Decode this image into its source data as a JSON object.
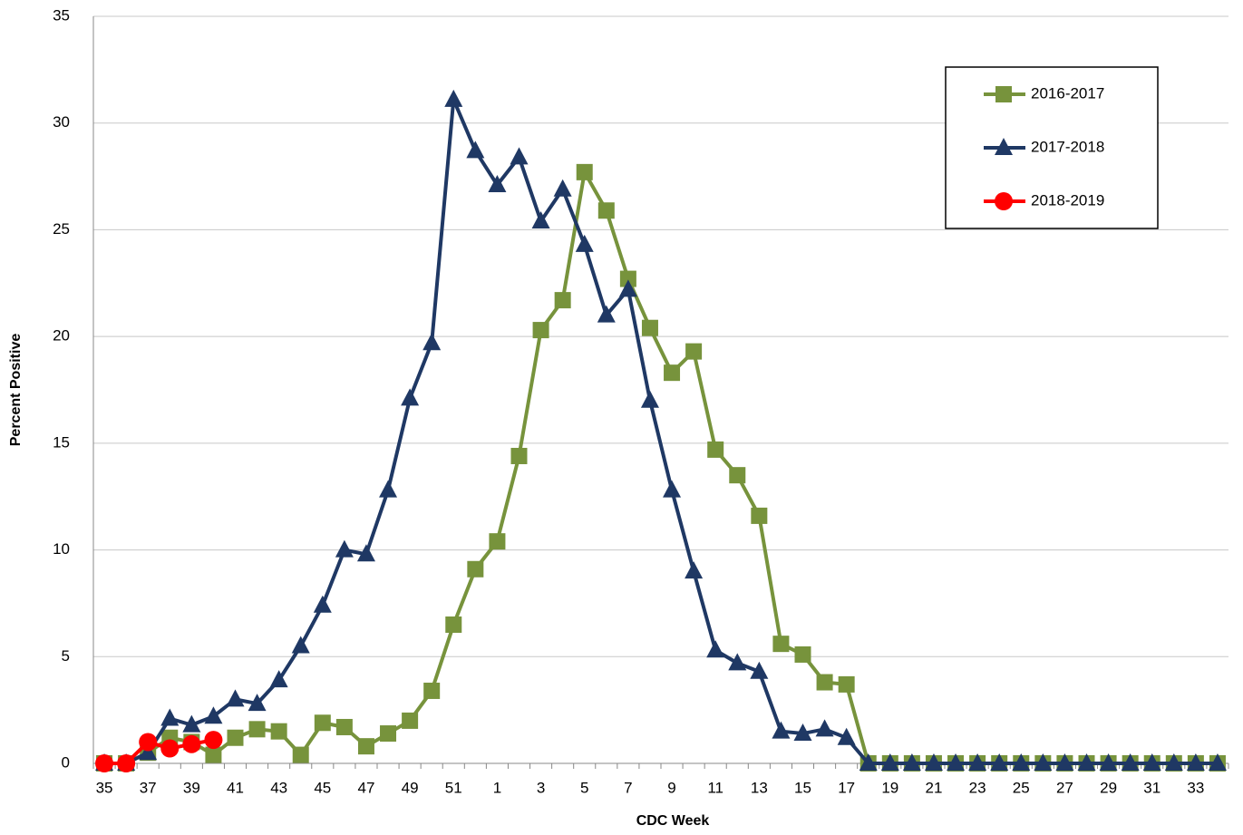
{
  "chart_data": {
    "type": "line",
    "xlabel": "CDC Week",
    "ylabel": "Percent Positive",
    "categories": [
      "35",
      null,
      "37",
      null,
      "39",
      null,
      "41",
      null,
      "43",
      null,
      "45",
      null,
      "47",
      null,
      "49",
      null,
      "51",
      null,
      "1",
      null,
      "3",
      null,
      "5",
      null,
      "7",
      null,
      "9",
      null,
      "11",
      null,
      "13",
      null,
      "15",
      null,
      "17",
      null,
      "19",
      null,
      "21",
      null,
      "23",
      null,
      "25",
      null,
      "27",
      null,
      "29",
      null,
      "31",
      null,
      "33",
      null
    ],
    "series": [
      {
        "name": "2016-2017",
        "color": "#77933c",
        "marker": "square",
        "values": [
          0,
          0,
          0.5,
          1.2,
          1.0,
          0.4,
          1.2,
          1.6,
          1.5,
          0.4,
          1.9,
          1.7,
          0.8,
          1.4,
          2.0,
          3.4,
          6.5,
          9.1,
          10.4,
          14.4,
          20.3,
          21.7,
          27.7,
          25.9,
          22.7,
          20.4,
          18.3,
          19.3,
          14.7,
          13.5,
          11.6,
          5.6,
          5.1,
          3.8,
          3.7,
          0,
          0,
          0,
          0,
          0,
          0,
          0,
          0,
          0,
          0,
          0,
          0,
          0,
          0,
          0,
          0,
          0
        ]
      },
      {
        "name": "2017-2018",
        "color": "#1f3864",
        "marker": "triangle",
        "values": [
          0,
          0,
          0.5,
          2.1,
          1.8,
          2.2,
          3.0,
          2.8,
          3.9,
          5.5,
          7.4,
          10.0,
          9.8,
          12.8,
          17.1,
          19.7,
          31.1,
          28.7,
          27.1,
          28.4,
          25.4,
          26.9,
          24.3,
          21.0,
          22.2,
          17.0,
          12.8,
          9.0,
          5.3,
          4.7,
          4.3,
          1.5,
          1.4,
          1.6,
          1.2,
          0,
          0,
          0,
          0,
          0,
          0,
          0,
          0,
          0,
          0,
          0,
          0,
          0,
          0,
          0,
          0,
          0
        ]
      },
      {
        "name": "2018-2019",
        "color": "#ff0000",
        "marker": "circle",
        "values": [
          0,
          0,
          1.0,
          0.7,
          0.9,
          1.1,
          null,
          null,
          null,
          null,
          null,
          null,
          null,
          null,
          null,
          null,
          null,
          null,
          null,
          null,
          null,
          null,
          null,
          null,
          null,
          null,
          null,
          null,
          null,
          null,
          null,
          null,
          null,
          null,
          null,
          null,
          null,
          null,
          null,
          null,
          null,
          null,
          null,
          null,
          null,
          null,
          null,
          null,
          null,
          null,
          null,
          null
        ]
      }
    ],
    "ylim": [
      0,
      35
    ],
    "yticks": [
      0,
      5,
      10,
      15,
      20,
      25,
      30,
      35
    ],
    "grid": true,
    "legend": "upper right"
  }
}
